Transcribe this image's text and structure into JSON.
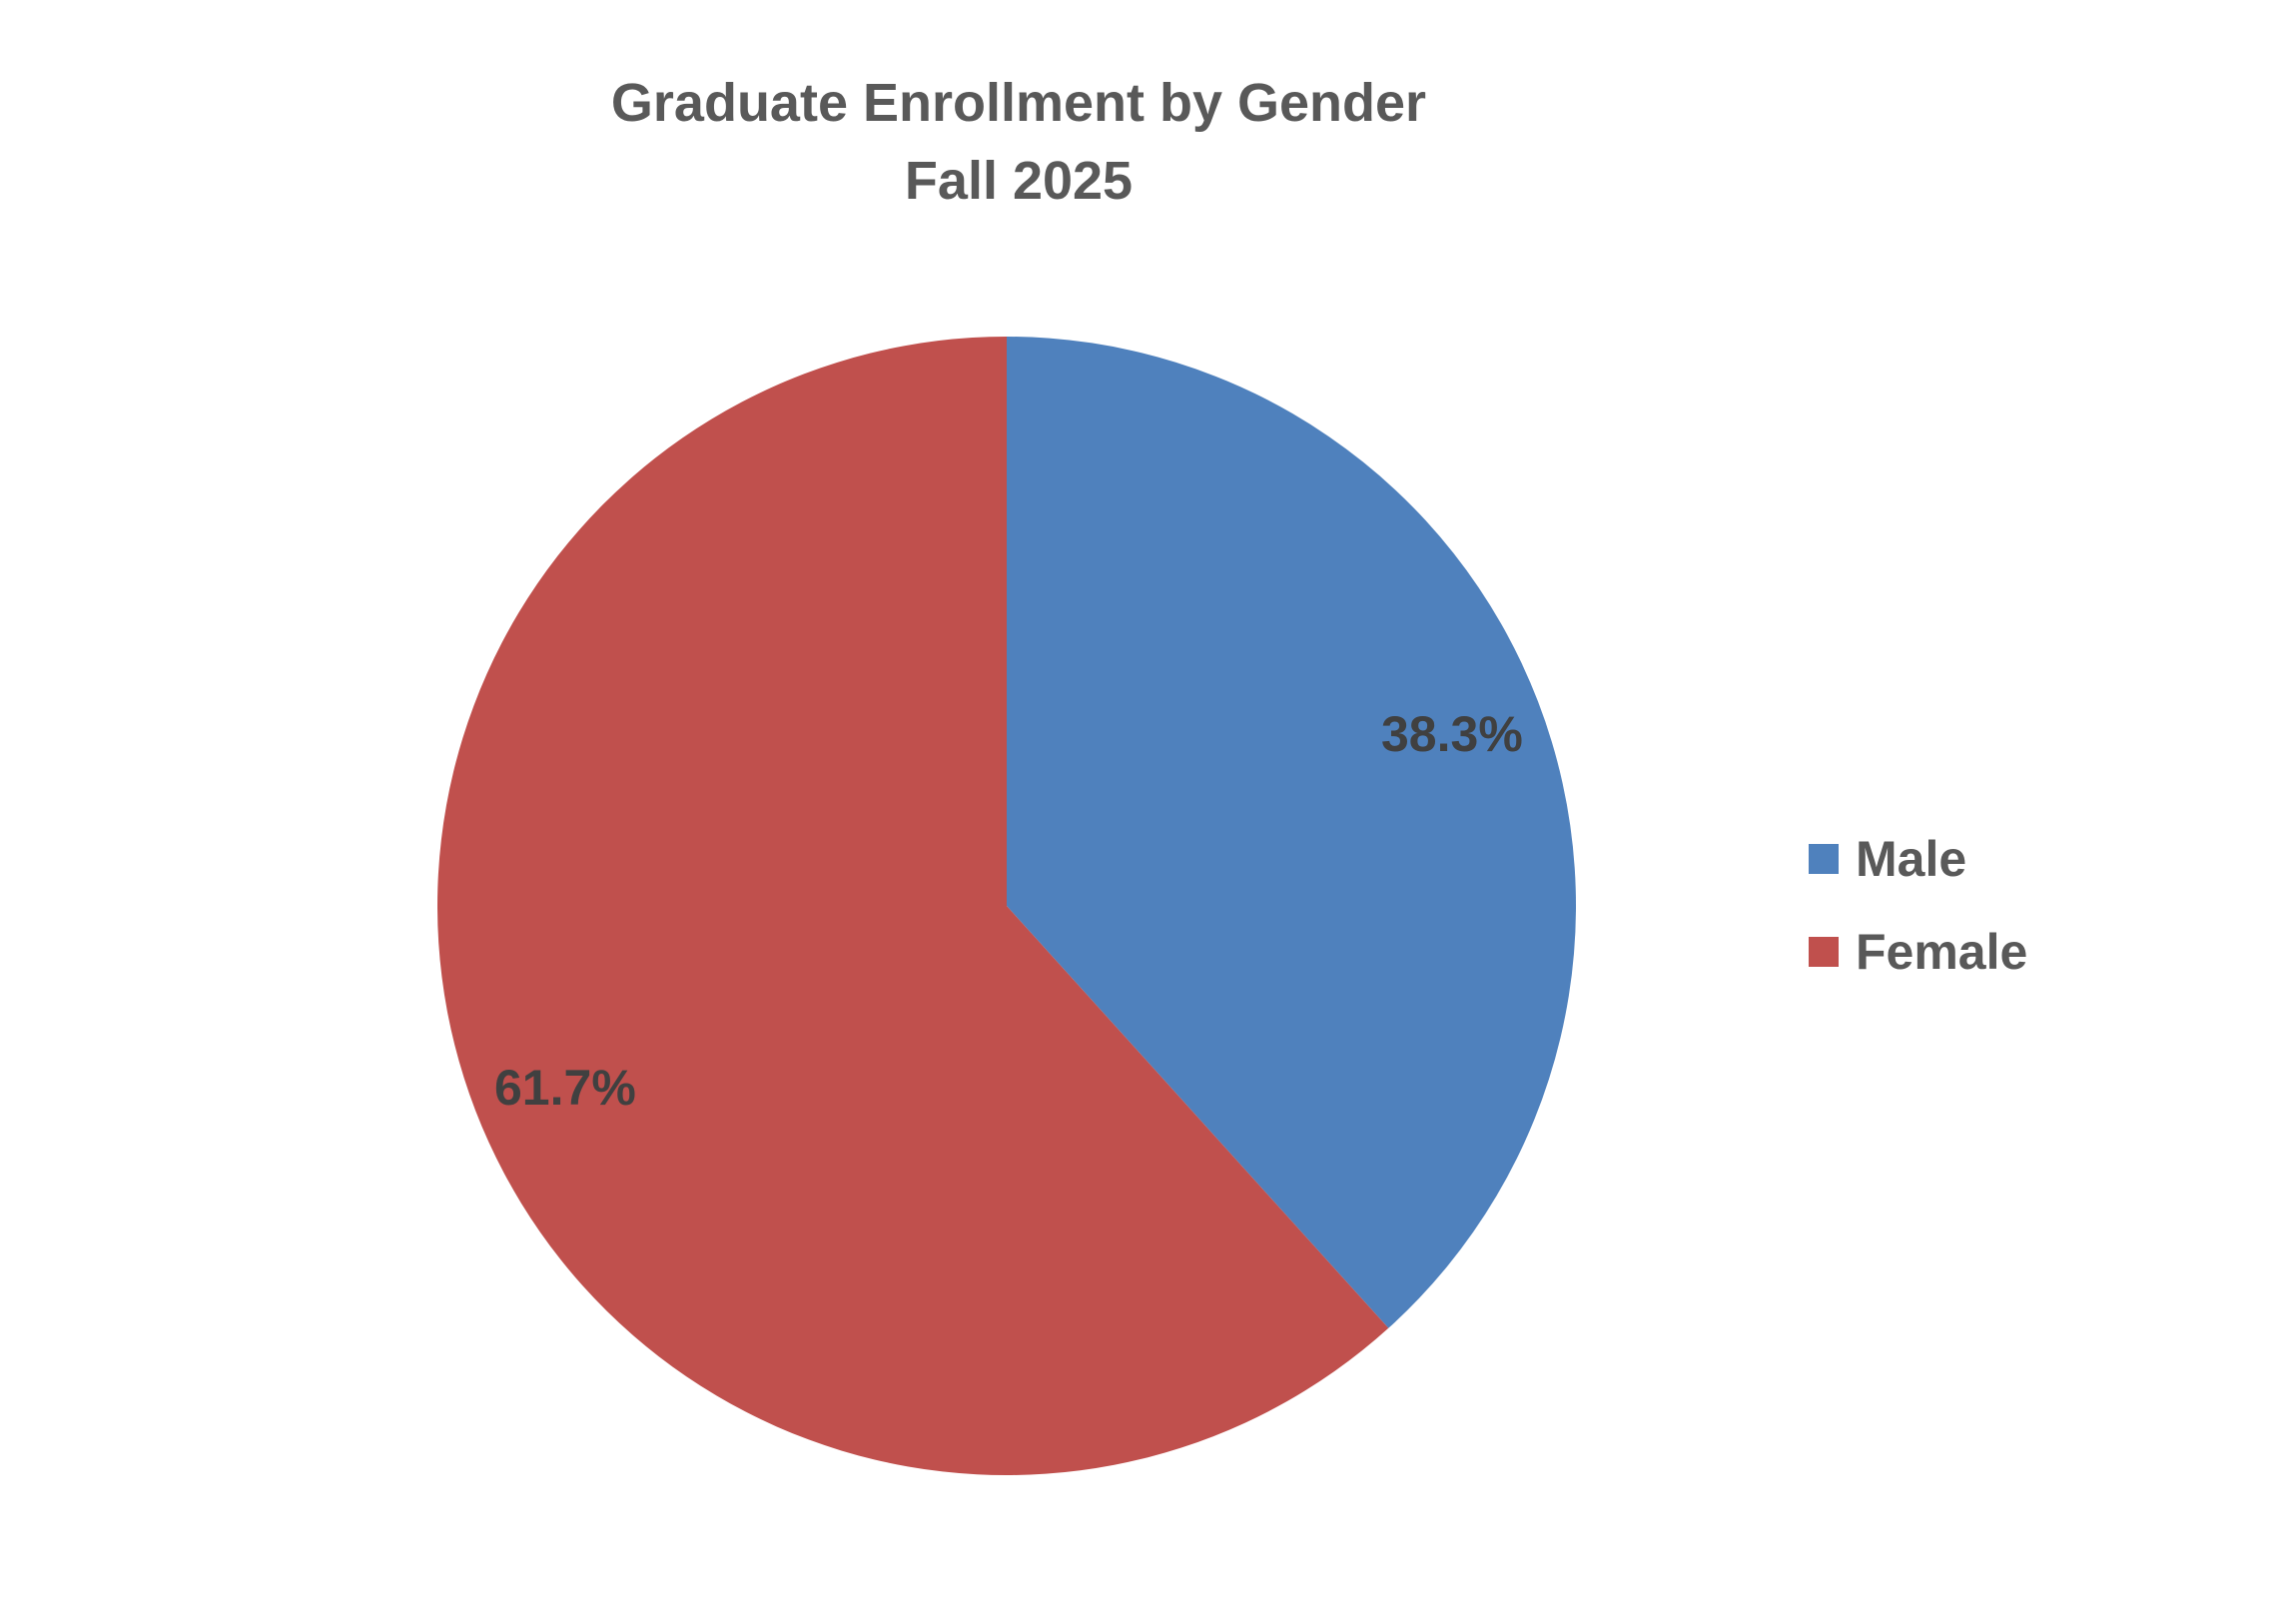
{
  "chart_data": {
    "type": "pie",
    "title": "Graduate Enrollment by Gender",
    "subtitle": "Fall 2025",
    "categories": [
      "Male",
      "Female"
    ],
    "values": [
      38.3,
      61.7
    ],
    "unit": "%",
    "colors": [
      "#4F81BD",
      "#C0504D"
    ],
    "data_labels": [
      "38.3%",
      "61.7%"
    ],
    "start_angle_deg": 0,
    "direction": "clockwise",
    "legend_position": "right"
  },
  "title": {
    "line1": "Graduate Enrollment by Gender",
    "line2": "Fall 2025"
  },
  "labels": {
    "male": "38.3%",
    "female": "61.7%"
  },
  "legend": {
    "items": [
      {
        "label": "Male",
        "color": "#4F81BD"
      },
      {
        "label": "Female",
        "color": "#C0504D"
      }
    ]
  }
}
